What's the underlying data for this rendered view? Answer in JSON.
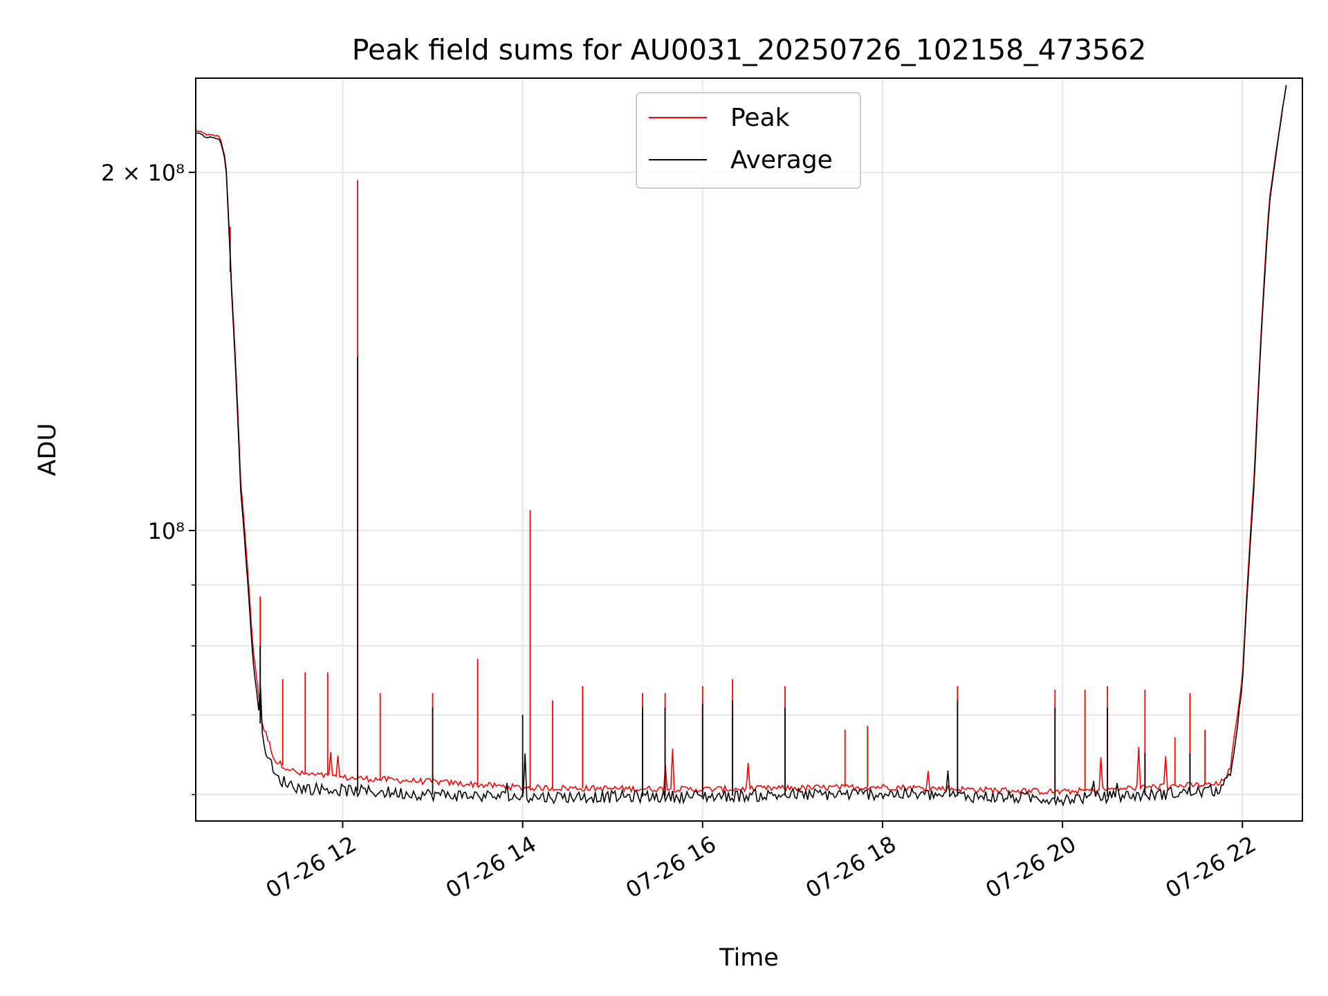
{
  "chart_data": {
    "type": "line",
    "title": "Peak field sums for AU0031_20250726_102158_473562",
    "xlabel": "Time",
    "ylabel": "ADU",
    "y_scale": "log",
    "x_range": [
      "07-26 10:22",
      "07-26 22:40"
    ],
    "ylim": [
      57000000,
      240000000
    ],
    "x_ticks": [
      "07-26 12",
      "07-26 14",
      "07-26 16",
      "07-26 18",
      "07-26 20",
      "07-26 22"
    ],
    "y_major_ticks": [
      {
        "value": 100000000,
        "label": "10⁸"
      },
      {
        "value": 200000000,
        "label": "2 × 10⁸"
      }
    ],
    "y_minor_ticks": [
      60000000,
      70000000,
      80000000,
      90000000
    ],
    "grid": true,
    "legend_position": "top-center",
    "series": [
      {
        "name": "Peak",
        "color": "#ff0000",
        "points": [
          [
            "07-26 10:22",
            217000000
          ],
          [
            "07-26 10:30",
            215000000
          ],
          [
            "07-26 10:38",
            214500000
          ],
          [
            "07-26 10:42",
            205000000
          ],
          [
            "07-26 10:46",
            160000000
          ],
          [
            "07-26 10:52",
            110000000
          ],
          [
            "07-26 11:00",
            80000000
          ],
          [
            "07-26 11:06",
            69000000
          ],
          [
            "07-26 11:15",
            64000000
          ],
          [
            "07-26 11:30",
            62500000
          ],
          [
            "07-26 12:00",
            62000000
          ],
          [
            "07-26 13:00",
            61500000
          ],
          [
            "07-26 14:00",
            60800000
          ],
          [
            "07-26 16:00",
            60600000
          ],
          [
            "07-26 18:00",
            60900000
          ],
          [
            "07-26 19:00",
            60600000
          ],
          [
            "07-26 20:00",
            60300000
          ],
          [
            "07-26 21:00",
            60900000
          ],
          [
            "07-26 21:45",
            61200000
          ],
          [
            "07-26 21:52",
            63000000
          ],
          [
            "07-26 22:00",
            75000000
          ],
          [
            "07-26 22:08",
            112000000
          ],
          [
            "07-26 22:18",
            190000000
          ],
          [
            "07-26 22:30",
            240000000
          ]
        ],
        "spikes": [
          [
            "07-26 10:45",
            180000000
          ],
          [
            "07-26 11:05",
            88000000
          ],
          [
            "07-26 11:20",
            75000000
          ],
          [
            "07-26 11:35",
            76000000
          ],
          [
            "07-26 11:50",
            76000000
          ],
          [
            "07-26 12:10",
            197000000
          ],
          [
            "07-26 12:25",
            73000000
          ],
          [
            "07-26 13:00",
            73000000
          ],
          [
            "07-26 13:30",
            78000000
          ],
          [
            "07-26 14:05",
            104000000
          ],
          [
            "07-26 14:20",
            72000000
          ],
          [
            "07-26 14:40",
            74000000
          ],
          [
            "07-26 15:20",
            73000000
          ],
          [
            "07-26 15:35",
            73000000
          ],
          [
            "07-26 16:00",
            74000000
          ],
          [
            "07-26 16:20",
            75000000
          ],
          [
            "07-26 16:55",
            74000000
          ],
          [
            "07-26 17:35",
            68000000
          ],
          [
            "07-26 17:50",
            68500000
          ],
          [
            "07-26 18:50",
            74000000
          ],
          [
            "07-26 19:55",
            73500000
          ],
          [
            "07-26 20:15",
            73500000
          ],
          [
            "07-26 20:30",
            74000000
          ],
          [
            "07-26 20:55",
            73500000
          ],
          [
            "07-26 21:15",
            67000000
          ],
          [
            "07-26 21:25",
            73000000
          ],
          [
            "07-26 21:35",
            68000000
          ],
          [
            "07-26 22:00",
            75000000
          ]
        ]
      },
      {
        "name": "Average",
        "color": "#000000",
        "points": [
          [
            "07-26 10:22",
            216000000
          ],
          [
            "07-26 10:30",
            214000000
          ],
          [
            "07-26 10:38",
            213500000
          ],
          [
            "07-26 10:42",
            204000000
          ],
          [
            "07-26 10:46",
            158000000
          ],
          [
            "07-26 10:52",
            108000000
          ],
          [
            "07-26 11:00",
            78000000
          ],
          [
            "07-26 11:06",
            67000000
          ],
          [
            "07-26 11:15",
            62000000
          ],
          [
            "07-26 11:30",
            60800000
          ],
          [
            "07-26 12:00",
            60500000
          ],
          [
            "07-26 13:00",
            60000000
          ],
          [
            "07-26 14:00",
            59700000
          ],
          [
            "07-26 16:00",
            59800000
          ],
          [
            "07-26 18:00",
            60100000
          ],
          [
            "07-26 19:00",
            59800000
          ],
          [
            "07-26 20:00",
            59500000
          ],
          [
            "07-26 21:00",
            60000000
          ],
          [
            "07-26 21:45",
            60500000
          ],
          [
            "07-26 21:52",
            62000000
          ],
          [
            "07-26 22:00",
            74000000
          ],
          [
            "07-26 22:08",
            110000000
          ],
          [
            "07-26 22:18",
            188000000
          ],
          [
            "07-26 22:30",
            240000000
          ]
        ],
        "spikes": [
          [
            "07-26 10:45",
            165000000
          ],
          [
            "07-26 11:05",
            80000000
          ],
          [
            "07-26 12:10",
            140000000
          ],
          [
            "07-26 13:00",
            71000000
          ],
          [
            "07-26 14:00",
            70000000
          ],
          [
            "07-26 15:20",
            71000000
          ],
          [
            "07-26 15:35",
            71000000
          ],
          [
            "07-26 16:00",
            71500000
          ],
          [
            "07-26 16:20",
            72000000
          ],
          [
            "07-26 16:55",
            71000000
          ],
          [
            "07-26 18:50",
            72000000
          ],
          [
            "07-26 19:55",
            71000000
          ],
          [
            "07-26 20:30",
            71000000
          ],
          [
            "07-26 20:55",
            65000000
          ],
          [
            "07-26 21:25",
            65000000
          ]
        ]
      }
    ]
  }
}
